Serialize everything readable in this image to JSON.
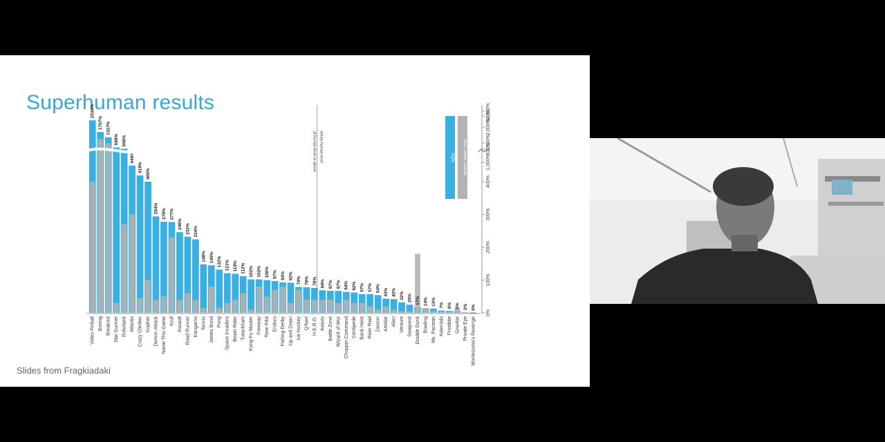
{
  "slide": {
    "title": "Superhuman results",
    "footer": "Slides from Fragkiadaki"
  },
  "colors": {
    "dqn": "#3ab0e2",
    "baseline": "#b3b3b3",
    "title": "#3aa6d8"
  },
  "chart_data": {
    "type": "bar",
    "title": "",
    "xlabel": "",
    "ylabel": "",
    "ylim": [
      0,
      600
    ],
    "yticks": [
      "0%",
      "100%",
      "200%",
      "300%",
      "400%",
      "500%",
      "600%",
      "1,000%",
      "1,500%",
      "2,000%",
      "2,500%"
    ],
    "axis_break": true,
    "legend": {
      "position": "top-right",
      "entries": [
        "DQN",
        "Best Linear Learner"
      ]
    },
    "annotations": [
      "at human-level or above",
      "below human-level"
    ],
    "categories": [
      "Video Pinball",
      "Boxing",
      "Breakout",
      "Star Gunner",
      "Robotank",
      "Atlantis",
      "Crazy Climber",
      "Gopher",
      "Demon Attack",
      "Name This Game",
      "Krull",
      "Assault",
      "Road Runner",
      "Kangaroo",
      "Tennis",
      "James Bond",
      "Pong",
      "Space Invaders",
      "Beam Rider",
      "Tutankham",
      "Kung-Fu Master",
      "Freeway",
      "Time Pilot",
      "Enduro",
      "Fishing Derby",
      "Up and Down",
      "Ice Hockey",
      "Q*bert",
      "H.E.R.O.",
      "Asterix",
      "Battle Zone",
      "Wizard of Wor",
      "Chopper Command",
      "Centipede",
      "Bank Heist",
      "River Raid",
      "Zaxxon",
      "Amidar",
      "Alien",
      "Venture",
      "Seaquest",
      "Double Dunk",
      "Bowling",
      "Ms. Pacman",
      "Asteroids",
      "Frostbite",
      "Gravitar",
      "Private Eye",
      "Montezuma's Revenge"
    ],
    "series": [
      {
        "name": "DQN",
        "value_labels": [
          "2539%",
          "1707%",
          "1327%",
          "598%",
          "508%",
          "449%",
          "419%",
          "400%",
          "294%",
          "278%",
          "277%",
          "246%",
          "232%",
          "224%",
          "148%",
          "145%",
          "132%",
          "121%",
          "119%",
          "112%",
          "102%",
          "102%",
          "100%",
          "97%",
          "93%",
          "92%",
          "79%",
          "78%",
          "76%",
          "69%",
          "67%",
          "67%",
          "64%",
          "62%",
          "57%",
          "57%",
          "54%",
          "43%",
          "42%",
          "32%",
          "25%",
          "17%",
          "14%",
          "13%",
          "7%",
          "6%",
          "5%",
          "2%",
          "0%"
        ],
        "values": [
          2539,
          1707,
          1327,
          598,
          508,
          449,
          419,
          400,
          294,
          278,
          277,
          246,
          232,
          224,
          148,
          145,
          132,
          121,
          119,
          112,
          102,
          102,
          100,
          97,
          93,
          92,
          79,
          78,
          76,
          69,
          67,
          67,
          64,
          62,
          57,
          57,
          54,
          43,
          42,
          32,
          25,
          17,
          14,
          13,
          7,
          6,
          5,
          2,
          0
        ]
      },
      {
        "name": "Best Linear Learner",
        "values": [
          400,
          1200,
          900,
          30,
          270,
          300,
          45,
          100,
          40,
          50,
          230,
          40,
          60,
          40,
          15,
          80,
          15,
          30,
          40,
          60,
          10,
          80,
          50,
          70,
          80,
          30,
          70,
          40,
          40,
          40,
          40,
          30,
          40,
          30,
          30,
          20,
          10,
          20,
          10,
          5,
          5,
          180,
          15,
          5,
          3,
          3,
          15,
          2,
          2
        ]
      }
    ]
  }
}
